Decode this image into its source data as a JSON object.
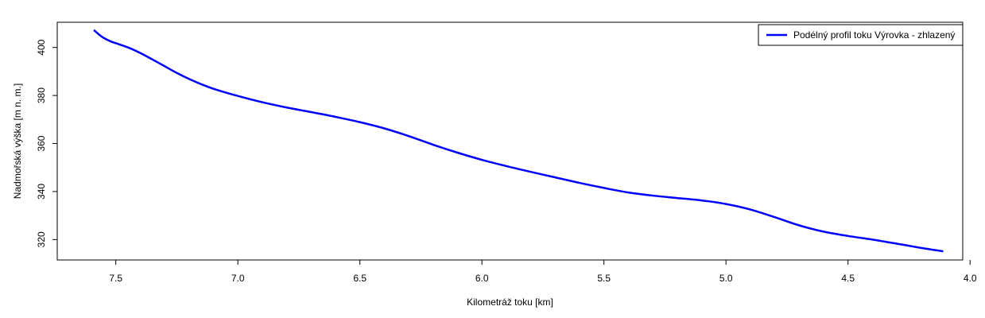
{
  "chart_data": {
    "type": "line",
    "title": "",
    "xlabel": "Kilometráž toku [km]",
    "ylabel": "Nadmořská výška [m n. m.]",
    "x_reversed": true,
    "xlim": [
      7.74,
      4.03
    ],
    "ylim": [
      311.5,
      410.5
    ],
    "x_ticks": [
      7.5,
      7.0,
      6.5,
      6.0,
      5.5,
      5.0,
      4.5,
      4.0
    ],
    "x_tick_labels": [
      "7.5",
      "7.0",
      "6.5",
      "6.0",
      "5.5",
      "5.0",
      "4.5",
      "4.0"
    ],
    "y_ticks": [
      320,
      340,
      360,
      380,
      400
    ],
    "y_tick_labels": [
      "320",
      "340",
      "360",
      "380",
      "400"
    ],
    "grid": false,
    "legend_position": "top-right",
    "series": [
      {
        "name": "Podélný profil toku Výrovka - zhlazený",
        "color": "#0000ff",
        "x": [
          7.59,
          7.57,
          7.55,
          7.52,
          7.48,
          7.44,
          7.4,
          7.35,
          7.3,
          7.25,
          7.2,
          7.15,
          7.1,
          7.0,
          6.9,
          6.8,
          6.7,
          6.6,
          6.5,
          6.4,
          6.3,
          6.2,
          6.1,
          6.0,
          5.9,
          5.8,
          5.7,
          5.6,
          5.5,
          5.4,
          5.3,
          5.2,
          5.1,
          5.0,
          4.9,
          4.8,
          4.7,
          4.6,
          4.5,
          4.4,
          4.3,
          4.2,
          4.11
        ],
        "y": [
          407.3,
          405.5,
          404.0,
          402.5,
          401.1,
          399.6,
          397.7,
          395.0,
          392.2,
          389.4,
          386.9,
          384.7,
          382.8,
          379.8,
          377.2,
          375.0,
          373.1,
          371.1,
          368.9,
          366.3,
          363.1,
          359.5,
          356.2,
          353.2,
          350.6,
          348.2,
          345.9,
          343.6,
          341.5,
          339.6,
          338.3,
          337.3,
          336.3,
          334.8,
          332.5,
          329.3,
          325.9,
          323.3,
          321.5,
          320.0,
          318.3,
          316.5,
          315.1
        ]
      }
    ]
  }
}
